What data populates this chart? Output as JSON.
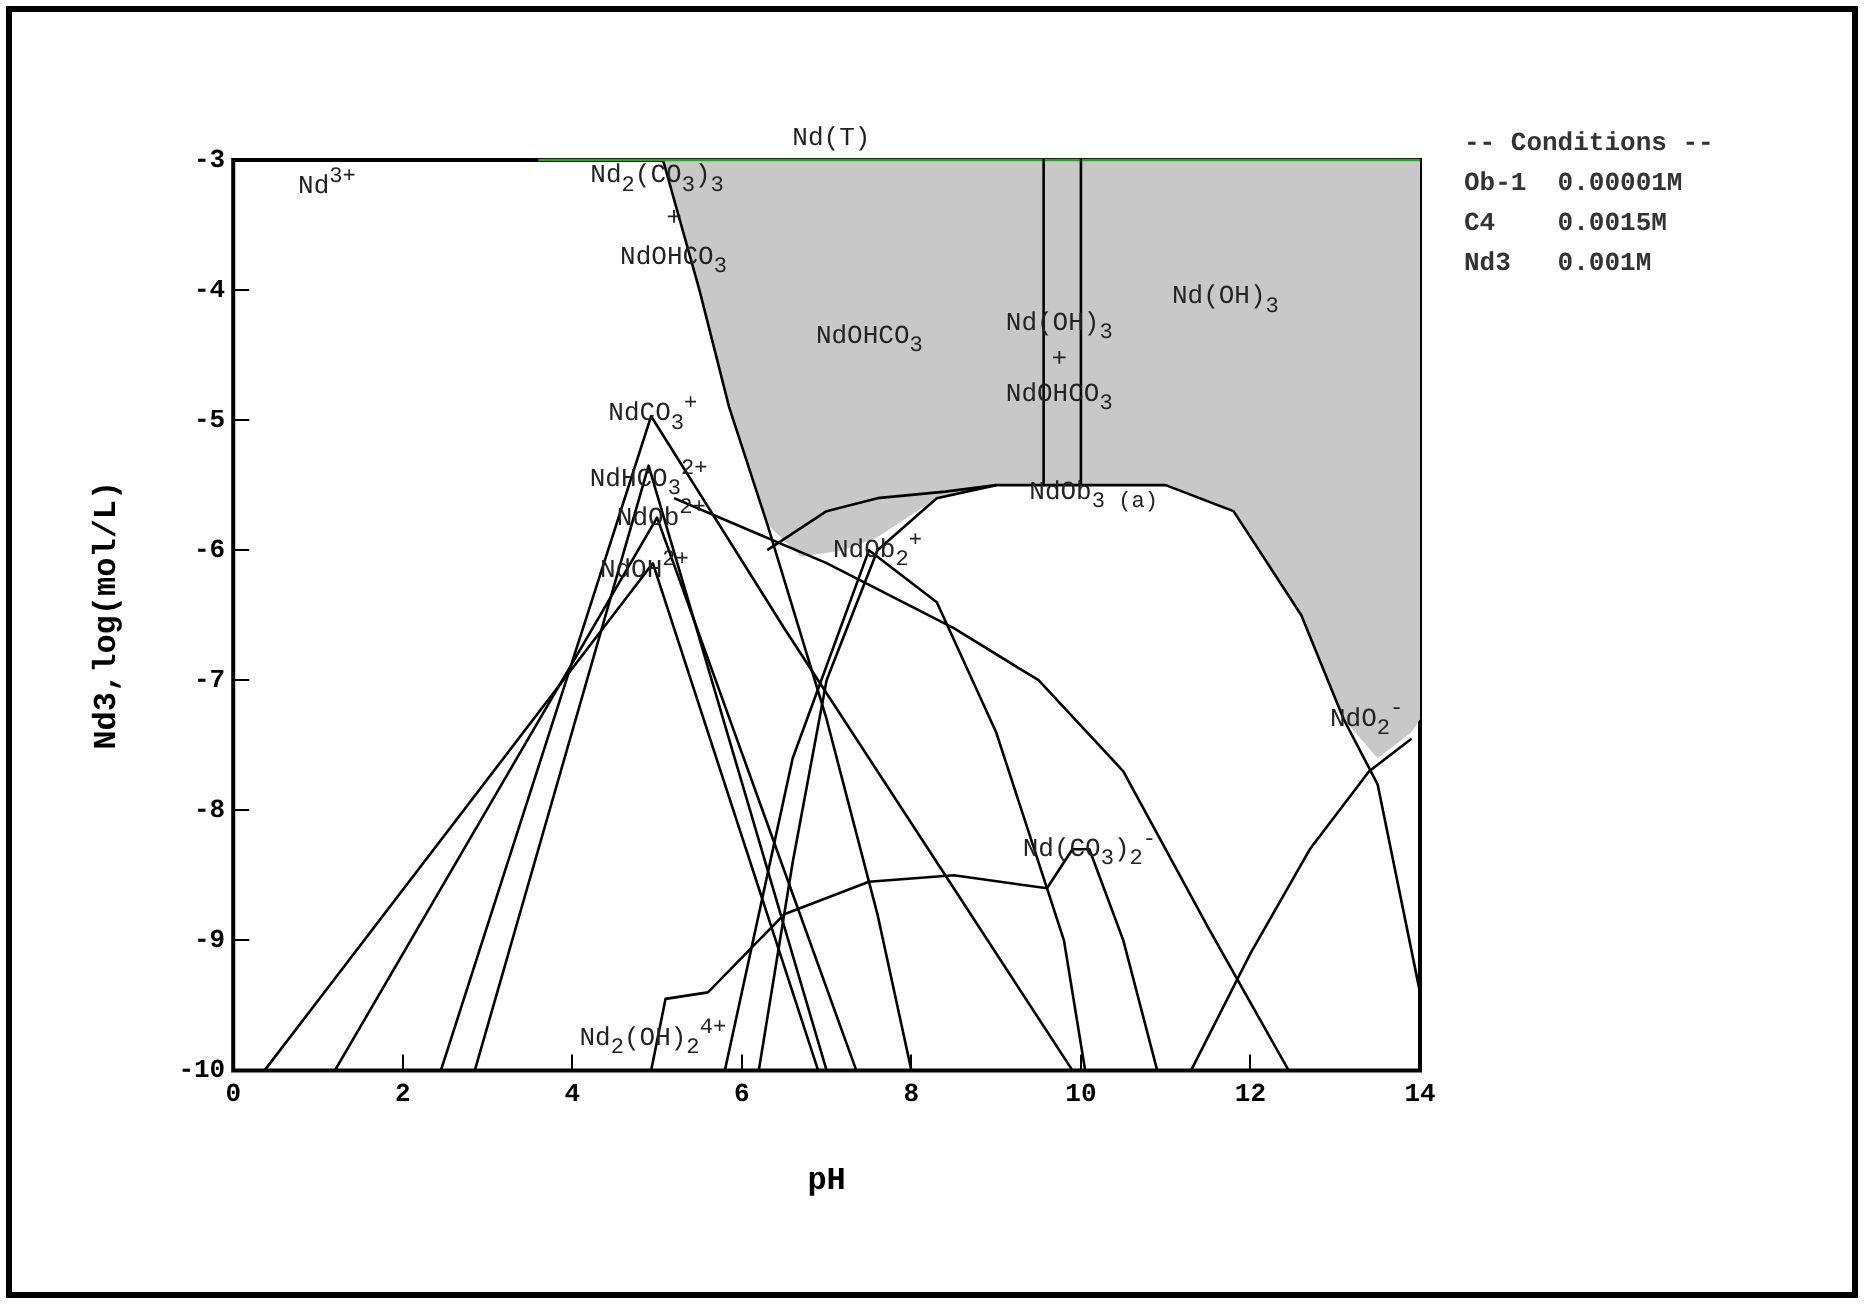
{
  "chart_data": {
    "type": "line",
    "xlabel": "pH",
    "ylabel": "Nd3,log(mol/L)",
    "xlim": [
      0,
      14
    ],
    "xticks": [
      0,
      2,
      4,
      6,
      8,
      10,
      12,
      14
    ],
    "ylim": [
      -10,
      -3
    ],
    "yticks": [
      -10,
      -9,
      -8,
      -7,
      -6,
      -5,
      -4,
      -3
    ],
    "grid": false,
    "legend": false,
    "marker": "none",
    "line_style": "solid",
    "series": [
      {
        "type": "area",
        "color": "#c8c8c8",
        "x": [
          5.07,
          5.5,
          5.85,
          6.3,
          6.7,
          7.2,
          7.6,
          8.3,
          9,
          11,
          11.8,
          12.6,
          13.1,
          13.5,
          13.9,
          14
        ],
        "values": [
          -3,
          -4,
          -4.9,
          -5.8,
          -6.05,
          -6,
          -5.9,
          -5.6,
          -5.5,
          -5.5,
          -5.7,
          -6.5,
          -7.3,
          -7.6,
          -7.4,
          -7.3
        ]
      },
      {
        "color": "#000000",
        "x": [
          0,
          5.07,
          5.5,
          5.85,
          6.3,
          7,
          7.6,
          8
        ],
        "values": [
          -3,
          -3,
          -4,
          -4.9,
          -5.8,
          -7.3,
          -8.8,
          -10
        ]
      },
      {
        "color": "#3a9a3a",
        "x": [
          3.6,
          14
        ],
        "values": [
          -3,
          -3
        ]
      },
      {
        "color": "#000000",
        "x": [
          9.56,
          9.56
        ],
        "values": [
          -3,
          -5.5
        ]
      },
      {
        "color": "#000000",
        "x": [
          10,
          10
        ],
        "values": [
          -3,
          -5.5
        ]
      },
      {
        "color": "#000000",
        "x": [
          6.2,
          6.6,
          7,
          7.6,
          8.3,
          9,
          11,
          11.8,
          12.6,
          13.1,
          13.5,
          14
        ],
        "values": [
          -10,
          -8.4,
          -7,
          -6,
          -5.6,
          -5.5,
          -5.5,
          -5.7,
          -6.5,
          -7.3,
          -7.8,
          -9.4
        ]
      },
      {
        "color": "#000000",
        "x": [
          0.37,
          4.95,
          6.9
        ],
        "values": [
          -10,
          -6.1,
          -10
        ]
      },
      {
        "color": "#000000",
        "x": [
          1.2,
          5,
          7.35
        ],
        "values": [
          -10,
          -5.75,
          -10
        ]
      },
      {
        "color": "#000000",
        "x": [
          2.85,
          4.9,
          7
        ],
        "values": [
          -10,
          -5.35,
          -10
        ]
      },
      {
        "color": "#000000",
        "x": [
          2.45,
          4.93,
          6.5,
          8.5,
          9.9
        ],
        "values": [
          -10,
          -4.97,
          -6.6,
          -8.6,
          -10
        ]
      },
      {
        "color": "#000000",
        "x": [
          4.93,
          5.1,
          5.6,
          6.5,
          7.5,
          8.5,
          9.6,
          9.9,
          10.1,
          10.5,
          10.9
        ],
        "values": [
          -10,
          -9.45,
          -9.4,
          -8.8,
          -8.55,
          -8.5,
          -8.6,
          -8.3,
          -8.3,
          -9,
          -10
        ]
      },
      {
        "color": "#000000",
        "x": [
          5.8,
          6.6,
          7.5,
          8.3,
          9,
          9.8,
          10.05
        ],
        "values": [
          -10,
          -7.6,
          -6,
          -6.4,
          -7.4,
          -9,
          -10
        ]
      },
      {
        "color": "#000000",
        "x": [
          6.3,
          7,
          7.6,
          8.4,
          9
        ],
        "values": [
          -6,
          -5.7,
          -5.6,
          -5.55,
          -5.5
        ]
      },
      {
        "color": "#000000",
        "x": [
          5.2,
          7,
          8.5,
          9.5,
          10.5,
          11.5,
          12.45
        ],
        "values": [
          -5.6,
          -6.1,
          -6.6,
          -7,
          -7.7,
          -8.9,
          -10
        ]
      },
      {
        "color": "#000000",
        "x": [
          11.3,
          12,
          12.7,
          13.4,
          13.9
        ],
        "values": [
          -10,
          -9.1,
          -8.3,
          -7.7,
          -7.45
        ]
      }
    ],
    "annotations": [
      "Nd(T)",
      "Nd$^{3+}$",
      {
        "text": "Nd$_{2}$(CO$_{3}$)$_{3}$",
        "x": 5.0,
        "y": -3.12
      },
      {
        "text": "+",
        "x": 5.2,
        "y": -3.45
      },
      "NdOHCO$_{3}$",
      "NdOHCO$_{3}$",
      "Nd(OH)$_{3}$",
      "+",
      "NdOHCO$_{3}$",
      "Nd(OH)$_{3}$",
      {
        "text": "NdCO$_{3}$$^{+}$",
        "x": 4.95,
        "y": -4.95
      },
      {
        "text": "NdHCO$_{3}$$^{2+}$",
        "x": 4.9,
        "y": -5.45
      },
      {
        "text": "NdOb$^{2+}$",
        "x": 5.05,
        "y": -5.75
      },
      {
        "text": "NdOH$^{2+}$",
        "x": 4.85,
        "y": -6.15
      },
      {
        "text": "NdOb$_{2}$$^{+}$",
        "x": 7.6,
        "y": -6.0
      },
      {
        "text": "NdOb$_{3 (a)}$",
        "x": 10.15,
        "y": -5.55
      },
      "NdO$_{2}$$^{-}$",
      {
        "text": "Nd(CO$_{3}$)$_{2}$$^{-}$",
        "x": 10.1,
        "y": -8.3
      },
      {
        "text": "Nd$_{2}$(OH)$_{2}$$^{4+}$",
        "x": 4.95,
        "y": -9.75
      },
      "-- Conditions --",
      "Ob-1  0.00001M",
      "C4    0.0015M",
      "Nd3   0.001M"
    ]
  }
}
